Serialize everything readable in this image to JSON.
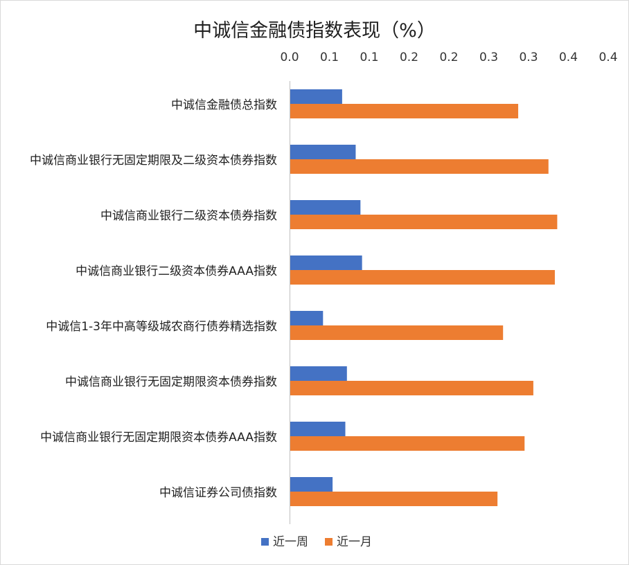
{
  "chart_data": {
    "type": "bar",
    "orientation": "horizontal",
    "title": "中诚信金融债指数表现（%）",
    "xaxis_position": "top",
    "xlim": [
      0,
      0.4
    ],
    "xticks": [
      0,
      0.05,
      0.1,
      0.15,
      0.2,
      0.25,
      0.3,
      0.35,
      0.4
    ],
    "xtick_labels": [
      "0.0",
      "0.1",
      "0.1",
      "0.2",
      "0.2",
      "0.3",
      "0.3",
      "0.4",
      "0.4"
    ],
    "categories": [
      "中诚信金融债总指数",
      "中诚信商业银行无固定期限及二级资本债券指数",
      "中诚信商业银行二级资本债券指数",
      "中诚信商业银行二级资本债券AAA指数",
      "中诚信1-3年中高等级城农商行债券精选指数",
      "中诚信商业银行无固定期限资本债券指数",
      "中诚信商业银行无固定期限资本债券AAA指数",
      "中诚信证券公司债指数"
    ],
    "series": [
      {
        "name": "近一周",
        "color": "#4472c4",
        "values": [
          0.066,
          0.083,
          0.089,
          0.091,
          0.042,
          0.072,
          0.07,
          0.054
        ]
      },
      {
        "name": "近一月",
        "color": "#ed7d31",
        "values": [
          0.287,
          0.325,
          0.336,
          0.333,
          0.268,
          0.306,
          0.295,
          0.261
        ]
      }
    ],
    "legend_position": "bottom",
    "grid": false
  }
}
